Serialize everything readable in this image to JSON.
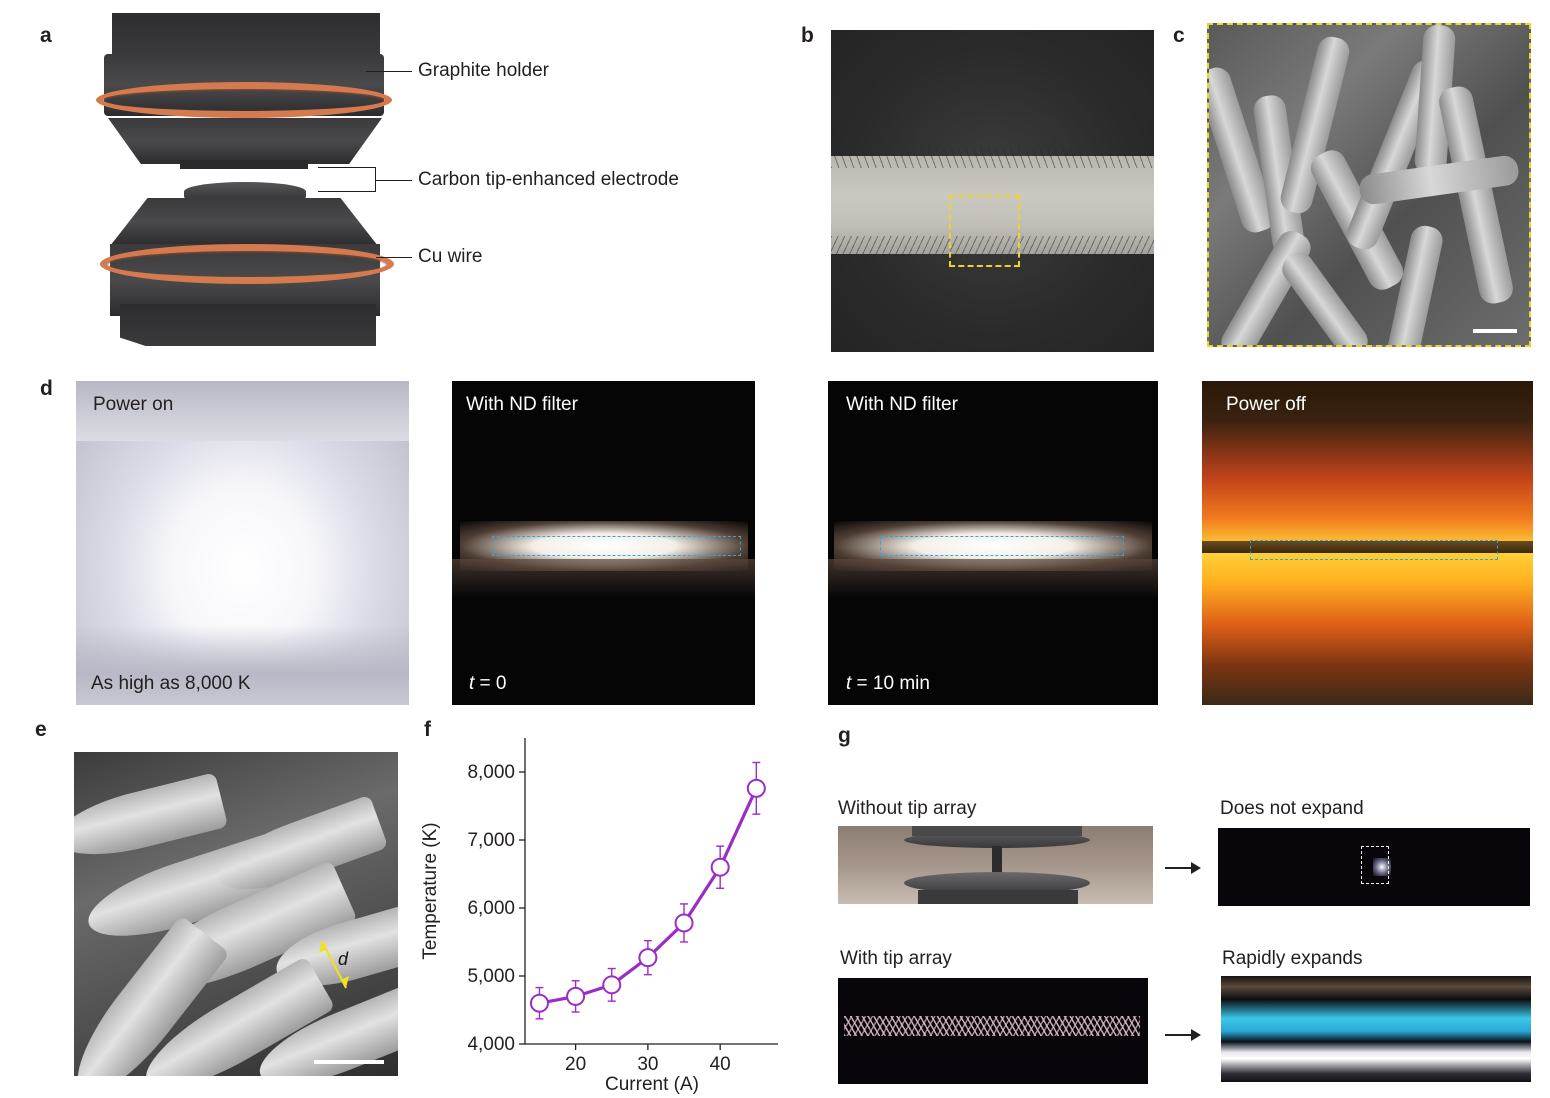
{
  "panels": {
    "a": {
      "letter": "a",
      "labels": {
        "graphite_holder": "Graphite holder",
        "electrode": "Carbon tip-enhanced  electrode",
        "cu_wire": "Cu wire"
      },
      "colors": {
        "graphite": "#3e3e40",
        "copper": "#d47a4e"
      }
    },
    "b": {
      "letter": "b"
    },
    "c": {
      "letter": "c"
    },
    "d": {
      "letter": "d",
      "images": [
        {
          "top_label": "Power on",
          "bottom_label": "As high as 8,000 K"
        },
        {
          "top_label": "With ND filter",
          "bottom_var": "t",
          "bottom_value": " = 0"
        },
        {
          "top_label": "With ND filter",
          "bottom_var": "t",
          "bottom_value": " = 10 min"
        },
        {
          "top_label": "Power off"
        }
      ]
    },
    "e": {
      "letter": "e",
      "dimension_label": "d"
    },
    "f": {
      "letter": "f"
    },
    "g": {
      "letter": "g",
      "labels": {
        "without_tip": "Without tip array",
        "does_not_expand": "Does not expand",
        "with_tip": "With tip array",
        "rapidly_expands": "Rapidly expands"
      }
    }
  },
  "chart_data": {
    "type": "line",
    "xlabel": "Current (A)",
    "ylabel": "Temperature (K)",
    "x": [
      15,
      20,
      25,
      30,
      35,
      40,
      45
    ],
    "y": [
      4600,
      4700,
      4870,
      5270,
      5780,
      6600,
      7760
    ],
    "error": [
      230,
      230,
      240,
      250,
      280,
      310,
      380
    ],
    "xlim": [
      13,
      48
    ],
    "ylim": [
      4000,
      8500
    ],
    "xticks": [
      20,
      30,
      40
    ],
    "xtick_labels": [
      "20",
      "30",
      "40"
    ],
    "yticks": [
      4000,
      5000,
      6000,
      7000,
      8000
    ],
    "ytick_labels": [
      "4,000",
      "5,000",
      "6,000",
      "7,000",
      "8,000"
    ],
    "color": "#9b2cc4",
    "grid": false,
    "marker": "open-circle"
  }
}
